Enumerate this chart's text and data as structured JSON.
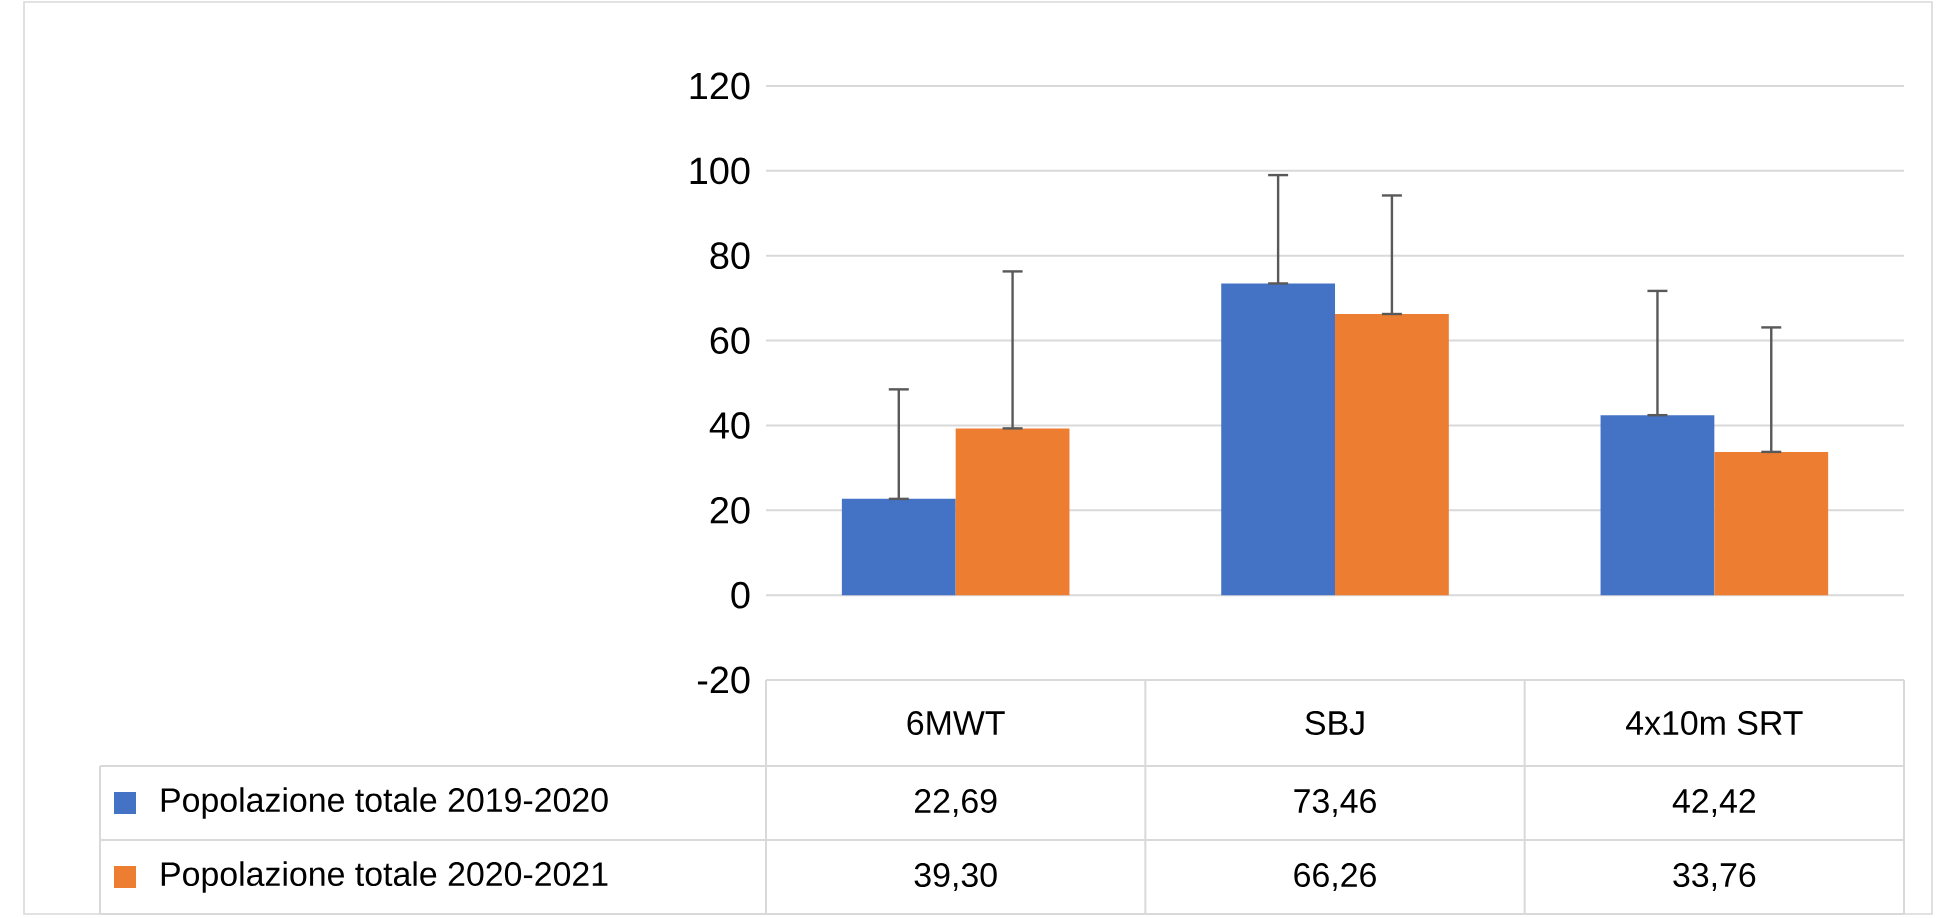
{
  "chart_data": {
    "type": "bar",
    "categories": [
      "6MWT",
      "SBJ",
      "4x10m SRT"
    ],
    "series": [
      {
        "name": "Popolazione totale 2019-2020",
        "color": "#4472c4",
        "values": [
          22.69,
          73.46,
          42.42
        ],
        "value_labels": [
          "22,69",
          "73,46",
          "42,42"
        ],
        "errors": [
          [
            22.69,
            48.5
          ],
          [
            73.46,
            99.0
          ],
          [
            42.42,
            71.7
          ]
        ]
      },
      {
        "name": "Popolazione totale 2020-2021",
        "color": "#ed7d31",
        "values": [
          39.3,
          66.26,
          33.76
        ],
        "value_labels": [
          "39,30",
          "66,26",
          "33,76"
        ],
        "errors": [
          [
            39.3,
            76.3
          ],
          [
            66.26,
            94.2
          ],
          [
            33.76,
            63.1
          ]
        ]
      }
    ],
    "ylim": [
      -20,
      120
    ],
    "yticks": [
      -20,
      0,
      20,
      40,
      60,
      80,
      100,
      120
    ],
    "grid": "y",
    "legend": "bottom"
  }
}
